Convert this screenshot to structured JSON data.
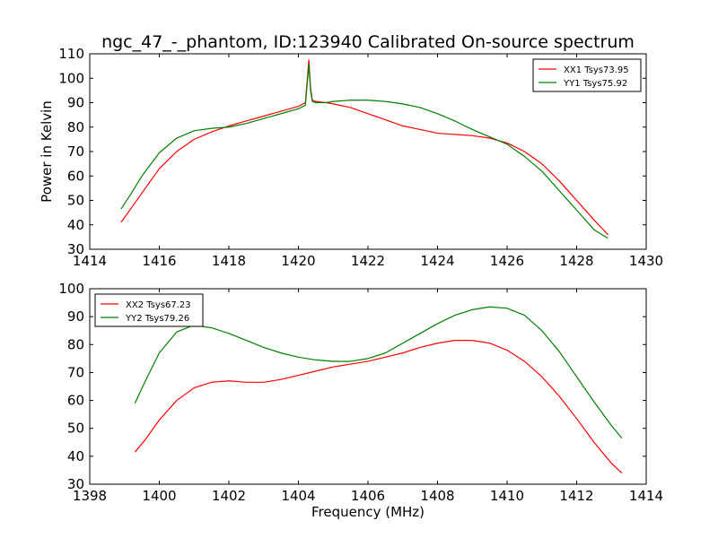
{
  "figure": {
    "title": "ngc_47_-_phantom, ID:123940 Calibrated On-source spectrum"
  },
  "chart_data": [
    {
      "type": "line",
      "title": "ngc_47_-_phantom, ID:123940 Calibrated On-source spectrum",
      "xlabel": "",
      "ylabel": "Power in Kelvin",
      "xlim": [
        1414,
        1430
      ],
      "ylim": [
        30,
        110
      ],
      "xticks": [
        1414,
        1416,
        1418,
        1420,
        1422,
        1424,
        1426,
        1428,
        1430
      ],
      "yticks": [
        30,
        40,
        50,
        60,
        70,
        80,
        90,
        100,
        110
      ],
      "grid": false,
      "legend_position": "top-right",
      "series": [
        {
          "name": "XX1 Tsys73.95",
          "color": "#ff0000",
          "x": [
            1414.9,
            1415.2,
            1415.5,
            1416.0,
            1416.5,
            1417.0,
            1417.5,
            1418.0,
            1418.5,
            1419.0,
            1419.5,
            1420.0,
            1420.2,
            1420.3,
            1420.35,
            1420.4,
            1420.5,
            1420.8,
            1421.0,
            1421.5,
            1422.0,
            1422.5,
            1423.0,
            1423.5,
            1424.0,
            1424.5,
            1425.0,
            1425.5,
            1426.0,
            1426.5,
            1427.0,
            1427.5,
            1428.0,
            1428.5,
            1428.9
          ],
          "y": [
            41,
            47,
            53,
            63,
            70,
            75,
            78,
            80.5,
            82.5,
            84.5,
            86.5,
            88.5,
            90,
            107.5,
            96,
            91,
            90.5,
            90,
            89.5,
            88,
            85.5,
            83,
            80.5,
            79,
            77.5,
            77,
            76.5,
            75.5,
            73.5,
            70,
            65,
            58,
            50,
            42,
            36
          ]
        },
        {
          "name": "YY1 Tsys75.92",
          "color": "#008000",
          "x": [
            1414.9,
            1415.2,
            1415.5,
            1416.0,
            1416.5,
            1417.0,
            1417.5,
            1418.0,
            1418.5,
            1419.0,
            1419.5,
            1420.0,
            1420.2,
            1420.3,
            1420.35,
            1420.4,
            1420.5,
            1420.8,
            1421.0,
            1421.5,
            1422.0,
            1422.5,
            1423.0,
            1423.5,
            1424.0,
            1424.5,
            1425.0,
            1425.5,
            1426.0,
            1426.5,
            1427.0,
            1427.5,
            1428.0,
            1428.5,
            1428.9
          ],
          "y": [
            46.5,
            53,
            60,
            69.5,
            75.5,
            78.5,
            79.5,
            80,
            81.5,
            83.5,
            85.5,
            87.5,
            89,
            105.5,
            95,
            90.5,
            90,
            90,
            90.5,
            91,
            91,
            90.5,
            89.5,
            88,
            85.5,
            82.5,
            79,
            76,
            73,
            68,
            62,
            54,
            46,
            38,
            34.5
          ]
        }
      ]
    },
    {
      "type": "line",
      "title": "",
      "xlabel": "Frequency (MHz)",
      "ylabel": "",
      "xlim": [
        1398,
        1414
      ],
      "ylim": [
        30,
        100
      ],
      "xticks": [
        1398,
        1400,
        1402,
        1404,
        1406,
        1408,
        1410,
        1412,
        1414
      ],
      "yticks": [
        30,
        40,
        50,
        60,
        70,
        80,
        90,
        100
      ],
      "grid": false,
      "legend_position": "top-left",
      "series": [
        {
          "name": "XX2 Tsys67.23",
          "color": "#ff0000",
          "x": [
            1399.3,
            1399.6,
            1400.0,
            1400.5,
            1401.0,
            1401.5,
            1402.0,
            1402.5,
            1403.0,
            1403.5,
            1404.0,
            1404.5,
            1405.0,
            1405.5,
            1406.0,
            1406.5,
            1407.0,
            1407.5,
            1408.0,
            1408.5,
            1409.0,
            1409.5,
            1410.0,
            1410.5,
            1411.0,
            1411.5,
            1412.0,
            1412.5,
            1413.0,
            1413.3
          ],
          "y": [
            41.5,
            46,
            53,
            60,
            64.5,
            66.5,
            67,
            66.5,
            66.5,
            67.5,
            69,
            70.5,
            72,
            73,
            74,
            75.5,
            77,
            79,
            80.5,
            81.5,
            81.5,
            80.5,
            78,
            74,
            68.5,
            61.5,
            53.5,
            45,
            37.5,
            34
          ]
        },
        {
          "name": "YY2 Tsys79.26",
          "color": "#008000",
          "x": [
            1399.3,
            1399.6,
            1400.0,
            1400.5,
            1401.0,
            1401.5,
            1402.0,
            1402.5,
            1403.0,
            1403.5,
            1404.0,
            1404.5,
            1405.0,
            1405.5,
            1406.0,
            1406.5,
            1407.0,
            1407.5,
            1408.0,
            1408.5,
            1409.0,
            1409.5,
            1410.0,
            1410.5,
            1411.0,
            1411.5,
            1412.0,
            1412.5,
            1413.0,
            1413.3
          ],
          "y": [
            59,
            67,
            77,
            84.5,
            87,
            86,
            84,
            81.5,
            79,
            77,
            75.5,
            74.5,
            74,
            74,
            75,
            77,
            80.5,
            84,
            87.5,
            90.5,
            92.5,
            93.5,
            93,
            90.5,
            85,
            77.5,
            68.5,
            59.5,
            51,
            46.5
          ]
        }
      ]
    }
  ]
}
